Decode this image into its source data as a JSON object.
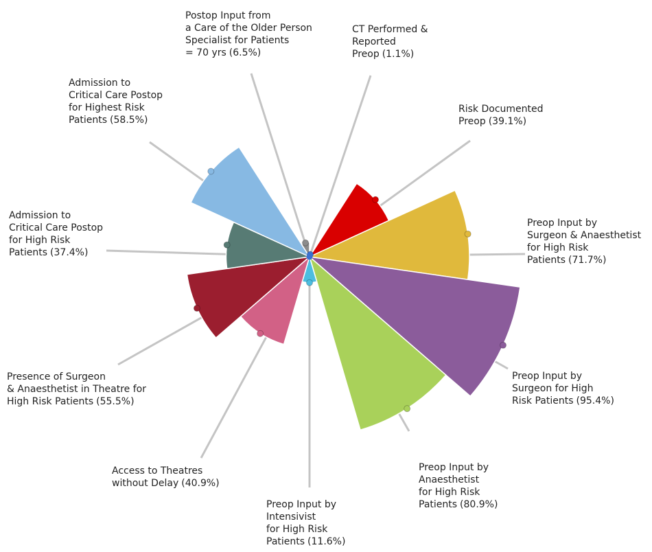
{
  "chart_data": {
    "type": "polar_area",
    "categories": [
      [
        "CT Performed &",
        "Reported",
        "Preop"
      ],
      [
        "Risk Documented",
        "Preop"
      ],
      [
        "Preop Input by",
        "Surgeon & Anaesthetist",
        "for High Risk",
        "Patients"
      ],
      [
        "Preop Input by",
        "Surgeon for High",
        "Risk Patients"
      ],
      [
        "Preop Input by",
        "Anaesthetist",
        "for High Risk",
        "Patients"
      ],
      [
        "Preop Input by",
        "Intensivist",
        "for High Risk",
        "Patients"
      ],
      [
        "Access to Theatres",
        "without Delay"
      ],
      [
        "Presence of Surgeon",
        "& Anaesthetist in Theatre for",
        "High Risk Patients"
      ],
      [
        "Admission to",
        "Critical Care Postop",
        "for High Risk",
        "Patients"
      ],
      [
        "Admission to",
        "Critical Care Postop",
        "for Highest Risk",
        "Patients"
      ],
      [
        "Postop Input from",
        "a Care of the Older Person",
        "Specialist for Patients",
        "= 70 yrs"
      ]
    ],
    "values": [
      1.1,
      39.1,
      71.7,
      95.4,
      80.9,
      11.6,
      40.9,
      55.5,
      37.4,
      58.5,
      6.5
    ],
    "value_labels": [
      "(1.1%)",
      "(39.1%)",
      "(71.7%)",
      "(95.4%)",
      "(80.9%)",
      "(11.6%)",
      "(40.9%)",
      "(55.5%)",
      "(37.4%)",
      "(58.5%)",
      "(6.5%)"
    ],
    "colors": [
      "#3b6fd0",
      "#d90000",
      "#e0b93c",
      "#8b5c9b",
      "#a9d15a",
      "#4dbde0",
      "#d26186",
      "#9b1e2f",
      "#577b74",
      "#87b9e3",
      "#8c8c8c"
    ],
    "rlim": [
      0,
      100
    ]
  }
}
